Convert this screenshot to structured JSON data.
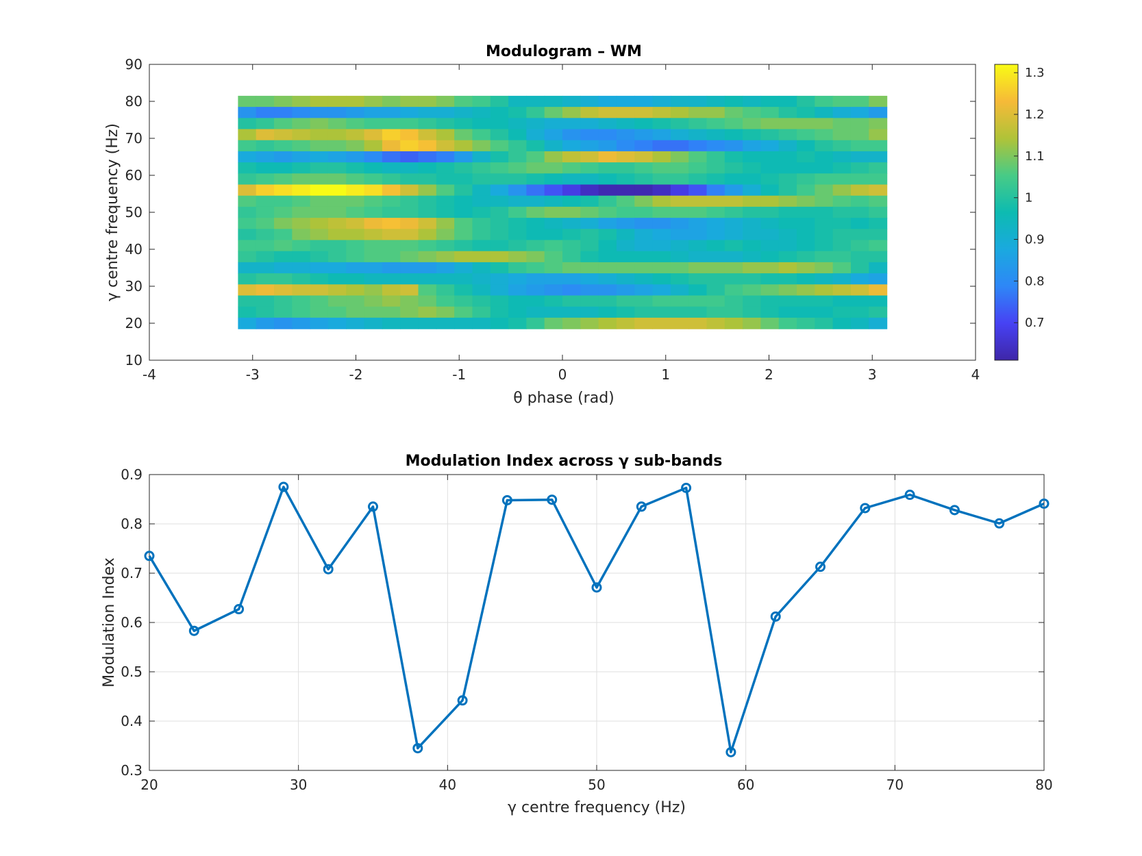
{
  "chart_data": [
    {
      "type": "heatmap",
      "title": "Modulogram – WM",
      "xlabel": "θ phase (rad)",
      "ylabel": "γ centre frequency (Hz)",
      "xlim": [
        -4,
        4
      ],
      "ylim": [
        10,
        90
      ],
      "xticks": [
        "-4",
        "-3",
        "-2",
        "-1",
        "0",
        "1",
        "2",
        "3",
        "4"
      ],
      "yticks": [
        "10",
        "20",
        "30",
        "40",
        "50",
        "60",
        "70",
        "80",
        "90"
      ],
      "x_range": [
        -3.1416,
        3.1416
      ],
      "y_range": [
        18.5,
        81.5
      ],
      "colorbar": {
        "min": 0.61,
        "max": 1.32,
        "ticks": [
          "0.7",
          "0.8",
          "0.9",
          "1",
          "1.1",
          "1.2",
          "1.3"
        ],
        "colormap": "parula"
      },
      "rows_top_to_bottom": [
        [
          1.08,
          1.08,
          1.1,
          1.12,
          1.14,
          1.14,
          1.14,
          1.12,
          1.1,
          1.12,
          1.12,
          1.1,
          1.06,
          1.04,
          1.0,
          0.94,
          0.94,
          0.94,
          0.92,
          0.9,
          0.88,
          0.88,
          0.88,
          0.9,
          0.92,
          0.92,
          0.94,
          0.96,
          0.94,
          0.96,
          0.96,
          1.0,
          1.04,
          1.06,
          1.06,
          1.1
        ],
        [
          0.82,
          0.78,
          0.78,
          0.8,
          0.82,
          0.82,
          0.84,
          0.86,
          0.86,
          0.88,
          0.9,
          0.9,
          0.92,
          0.94,
          0.96,
          0.98,
          1.02,
          1.08,
          1.12,
          1.16,
          1.18,
          1.18,
          1.18,
          1.16,
          1.14,
          1.12,
          1.12,
          1.08,
          1.06,
          1.04,
          1.0,
          0.98,
          0.94,
          0.9,
          0.88,
          0.84
        ],
        [
          1.0,
          1.02,
          1.06,
          1.08,
          1.1,
          1.08,
          1.06,
          1.04,
          1.04,
          1.04,
          1.02,
          1.0,
          0.98,
          0.96,
          0.96,
          0.94,
          0.92,
          0.9,
          0.9,
          0.9,
          0.92,
          0.94,
          0.96,
          0.98,
          1.0,
          1.02,
          1.04,
          1.06,
          1.08,
          1.1,
          1.1,
          1.1,
          1.1,
          1.08,
          1.08,
          1.1
        ],
        [
          1.14,
          1.2,
          1.18,
          1.16,
          1.14,
          1.14,
          1.16,
          1.2,
          1.26,
          1.24,
          1.18,
          1.14,
          1.08,
          1.04,
          1.0,
          0.96,
          0.9,
          0.86,
          0.82,
          0.8,
          0.8,
          0.82,
          0.84,
          0.86,
          0.9,
          0.92,
          0.94,
          0.96,
          0.98,
          1.0,
          1.02,
          1.04,
          1.06,
          1.08,
          1.08,
          1.12
        ],
        [
          1.04,
          1.02,
          1.04,
          1.06,
          1.08,
          1.08,
          1.1,
          1.14,
          1.22,
          1.26,
          1.24,
          1.18,
          1.14,
          1.1,
          1.06,
          1.02,
          0.98,
          0.92,
          0.88,
          0.86,
          0.84,
          0.8,
          0.78,
          0.76,
          0.76,
          0.78,
          0.8,
          0.82,
          0.86,
          0.88,
          0.92,
          0.96,
          1.0,
          1.02,
          1.04,
          1.04
        ],
        [
          0.88,
          0.86,
          0.84,
          0.86,
          0.88,
          0.86,
          0.84,
          0.8,
          0.76,
          0.74,
          0.76,
          0.78,
          0.84,
          0.92,
          0.98,
          1.02,
          1.06,
          1.12,
          1.16,
          1.18,
          1.22,
          1.2,
          1.18,
          1.14,
          1.1,
          1.06,
          1.02,
          0.98,
          0.96,
          0.96,
          0.96,
          0.98,
          0.96,
          0.94,
          0.92,
          0.92
        ],
        [
          0.98,
          0.96,
          0.96,
          0.98,
          1.0,
          1.0,
          0.98,
          0.96,
          0.94,
          0.94,
          0.96,
          0.98,
          1.0,
          1.02,
          1.04,
          1.06,
          1.08,
          1.08,
          1.06,
          1.04,
          1.02,
          1.02,
          1.04,
          1.06,
          1.06,
          1.04,
          1.02,
          1.0,
          0.98,
          0.96,
          0.96,
          0.96,
          0.96,
          0.98,
          1.0,
          1.02
        ],
        [
          1.02,
          1.04,
          1.06,
          1.08,
          1.08,
          1.08,
          1.06,
          1.04,
          1.02,
          1.0,
          1.0,
          0.98,
          0.98,
          1.0,
          1.0,
          1.0,
          0.98,
          0.96,
          0.94,
          0.94,
          0.96,
          0.98,
          1.0,
          1.02,
          1.02,
          1.0,
          0.98,
          0.96,
          0.96,
          0.98,
          1.0,
          1.02,
          1.04,
          1.04,
          1.04,
          1.04
        ],
        [
          1.2,
          1.26,
          1.28,
          1.3,
          1.32,
          1.32,
          1.3,
          1.28,
          1.24,
          1.18,
          1.12,
          1.06,
          1.0,
          0.94,
          0.88,
          0.82,
          0.76,
          0.72,
          0.68,
          0.64,
          0.62,
          0.62,
          0.62,
          0.64,
          0.68,
          0.72,
          0.78,
          0.84,
          0.9,
          0.96,
          1.0,
          1.04,
          1.08,
          1.12,
          1.16,
          1.18
        ],
        [
          1.06,
          1.04,
          1.04,
          1.06,
          1.08,
          1.08,
          1.08,
          1.06,
          1.04,
          1.02,
          1.0,
          0.98,
          0.96,
          0.94,
          0.94,
          0.92,
          0.92,
          0.94,
          0.96,
          0.98,
          1.02,
          1.06,
          1.1,
          1.14,
          1.16,
          1.16,
          1.16,
          1.16,
          1.14,
          1.14,
          1.12,
          1.1,
          1.08,
          1.06,
          1.04,
          1.06
        ],
        [
          1.02,
          1.04,
          1.06,
          1.08,
          1.08,
          1.08,
          1.06,
          1.04,
          1.02,
          1.02,
          1.0,
          0.98,
          0.96,
          0.98,
          1.0,
          1.04,
          1.08,
          1.1,
          1.1,
          1.08,
          1.06,
          1.04,
          1.04,
          1.06,
          1.06,
          1.06,
          1.04,
          1.02,
          1.0,
          1.0,
          0.98,
          0.98,
          0.98,
          1.0,
          1.0,
          1.02
        ],
        [
          1.04,
          1.06,
          1.1,
          1.12,
          1.14,
          1.16,
          1.18,
          1.22,
          1.24,
          1.22,
          1.18,
          1.12,
          1.06,
          1.02,
          1.0,
          0.98,
          0.96,
          0.94,
          0.92,
          0.9,
          0.86,
          0.84,
          0.82,
          0.82,
          0.84,
          0.86,
          0.88,
          0.9,
          0.92,
          0.94,
          0.96,
          0.96,
          0.98,
          0.98,
          0.96,
          0.98
        ],
        [
          1.0,
          1.02,
          1.04,
          1.1,
          1.12,
          1.14,
          1.14,
          1.16,
          1.18,
          1.18,
          1.14,
          1.1,
          1.06,
          1.02,
          1.0,
          0.98,
          0.96,
          0.96,
          0.98,
          1.0,
          0.98,
          0.94,
          0.9,
          0.88,
          0.86,
          0.86,
          0.88,
          0.9,
          0.92,
          0.92,
          0.94,
          0.96,
          0.98,
          1.0,
          1.0,
          1.0
        ],
        [
          1.04,
          1.04,
          1.06,
          1.04,
          1.02,
          1.02,
          1.04,
          1.06,
          1.06,
          1.06,
          1.04,
          1.02,
          1.0,
          0.98,
          0.98,
          1.0,
          1.02,
          1.04,
          1.02,
          1.0,
          0.96,
          0.92,
          0.9,
          0.9,
          0.92,
          0.94,
          0.96,
          0.98,
          0.96,
          0.94,
          0.94,
          0.96,
          0.98,
          1.0,
          1.02,
          1.04
        ],
        [
          1.02,
          1.0,
          0.98,
          0.98,
          1.0,
          1.02,
          1.04,
          1.06,
          1.06,
          1.08,
          1.1,
          1.12,
          1.14,
          1.14,
          1.14,
          1.12,
          1.1,
          1.06,
          1.02,
          0.98,
          0.96,
          0.96,
          0.96,
          0.96,
          0.94,
          0.92,
          0.92,
          0.92,
          0.94,
          0.96,
          0.98,
          1.0,
          1.02,
          1.02,
          1.0,
          1.0
        ],
        [
          0.92,
          0.92,
          0.9,
          0.9,
          0.88,
          0.88,
          0.86,
          0.86,
          0.84,
          0.84,
          0.84,
          0.86,
          0.9,
          0.94,
          0.98,
          1.02,
          1.04,
          1.06,
          1.08,
          1.08,
          1.08,
          1.08,
          1.08,
          1.08,
          1.08,
          1.1,
          1.1,
          1.1,
          1.12,
          1.12,
          1.14,
          1.12,
          1.1,
          1.06,
          1.0,
          0.94
        ],
        [
          1.0,
          1.02,
          1.02,
          1.0,
          0.98,
          0.96,
          0.96,
          0.94,
          0.94,
          0.94,
          0.94,
          0.94,
          0.94,
          0.92,
          0.9,
          0.88,
          0.86,
          0.86,
          0.86,
          0.88,
          0.9,
          0.92,
          0.94,
          0.96,
          0.98,
          1.0,
          1.0,
          1.0,
          1.0,
          0.98,
          0.98,
          0.96,
          0.94,
          0.92,
          0.88,
          0.86
        ],
        [
          1.2,
          1.22,
          1.2,
          1.18,
          1.18,
          1.16,
          1.14,
          1.12,
          1.16,
          1.18,
          1.06,
          1.02,
          0.98,
          0.94,
          0.9,
          0.86,
          0.84,
          0.82,
          0.8,
          0.82,
          0.82,
          0.84,
          0.86,
          0.88,
          0.92,
          0.96,
          1.0,
          1.04,
          1.06,
          1.08,
          1.1,
          1.12,
          1.14,
          1.16,
          1.18,
          1.22
        ],
        [
          1.0,
          1.0,
          1.02,
          1.04,
          1.06,
          1.08,
          1.08,
          1.1,
          1.12,
          1.1,
          1.08,
          1.04,
          1.02,
          1.0,
          0.98,
          0.96,
          0.96,
          0.98,
          1.0,
          1.0,
          1.0,
          1.02,
          1.02,
          1.04,
          1.04,
          1.04,
          1.04,
          1.02,
          1.0,
          0.98,
          0.98,
          0.98,
          0.98,
          0.96,
          0.96,
          0.96
        ],
        [
          0.98,
          1.0,
          1.02,
          1.04,
          1.06,
          1.06,
          1.08,
          1.08,
          1.08,
          1.1,
          1.12,
          1.1,
          1.06,
          1.02,
          0.98,
          0.96,
          0.94,
          0.94,
          0.94,
          0.94,
          0.96,
          0.98,
          1.0,
          1.0,
          1.0,
          1.0,
          1.02,
          1.02,
          1.0,
          0.98,
          0.96,
          0.96,
          0.96,
          0.98,
          0.98,
          1.0
        ],
        [
          0.88,
          0.84,
          0.82,
          0.84,
          0.86,
          0.88,
          0.9,
          0.92,
          0.94,
          0.94,
          0.94,
          0.94,
          0.94,
          0.94,
          0.96,
          0.98,
          1.02,
          1.08,
          1.1,
          1.12,
          1.14,
          1.16,
          1.18,
          1.18,
          1.18,
          1.18,
          1.16,
          1.14,
          1.12,
          1.08,
          1.04,
          1.02,
          1.0,
          0.96,
          0.94,
          0.9
        ]
      ]
    },
    {
      "type": "line",
      "title": "Modulation Index across γ sub-bands",
      "xlabel": "γ centre frequency (Hz)",
      "ylabel": "Modulation Index",
      "xlim": [
        20,
        80
      ],
      "ylim": [
        0.3,
        0.9
      ],
      "xticks": [
        "20",
        "30",
        "40",
        "50",
        "60",
        "70",
        "80"
      ],
      "yticks": [
        "0.3",
        "0.4",
        "0.5",
        "0.6",
        "0.7",
        "0.8",
        "0.9"
      ],
      "grid": true,
      "marker": "circle",
      "color": "#0072BD",
      "x": [
        20,
        23,
        26,
        29,
        32,
        35,
        38,
        41,
        44,
        47,
        50,
        53,
        56,
        59,
        62,
        65,
        68,
        71,
        74,
        77,
        80
      ],
      "y": [
        0.735,
        0.583,
        0.627,
        0.875,
        0.708,
        0.835,
        0.345,
        0.442,
        0.848,
        0.849,
        0.671,
        0.835,
        0.873,
        0.337,
        0.612,
        0.713,
        0.832,
        0.859,
        0.828,
        0.801,
        0.841
      ]
    }
  ]
}
